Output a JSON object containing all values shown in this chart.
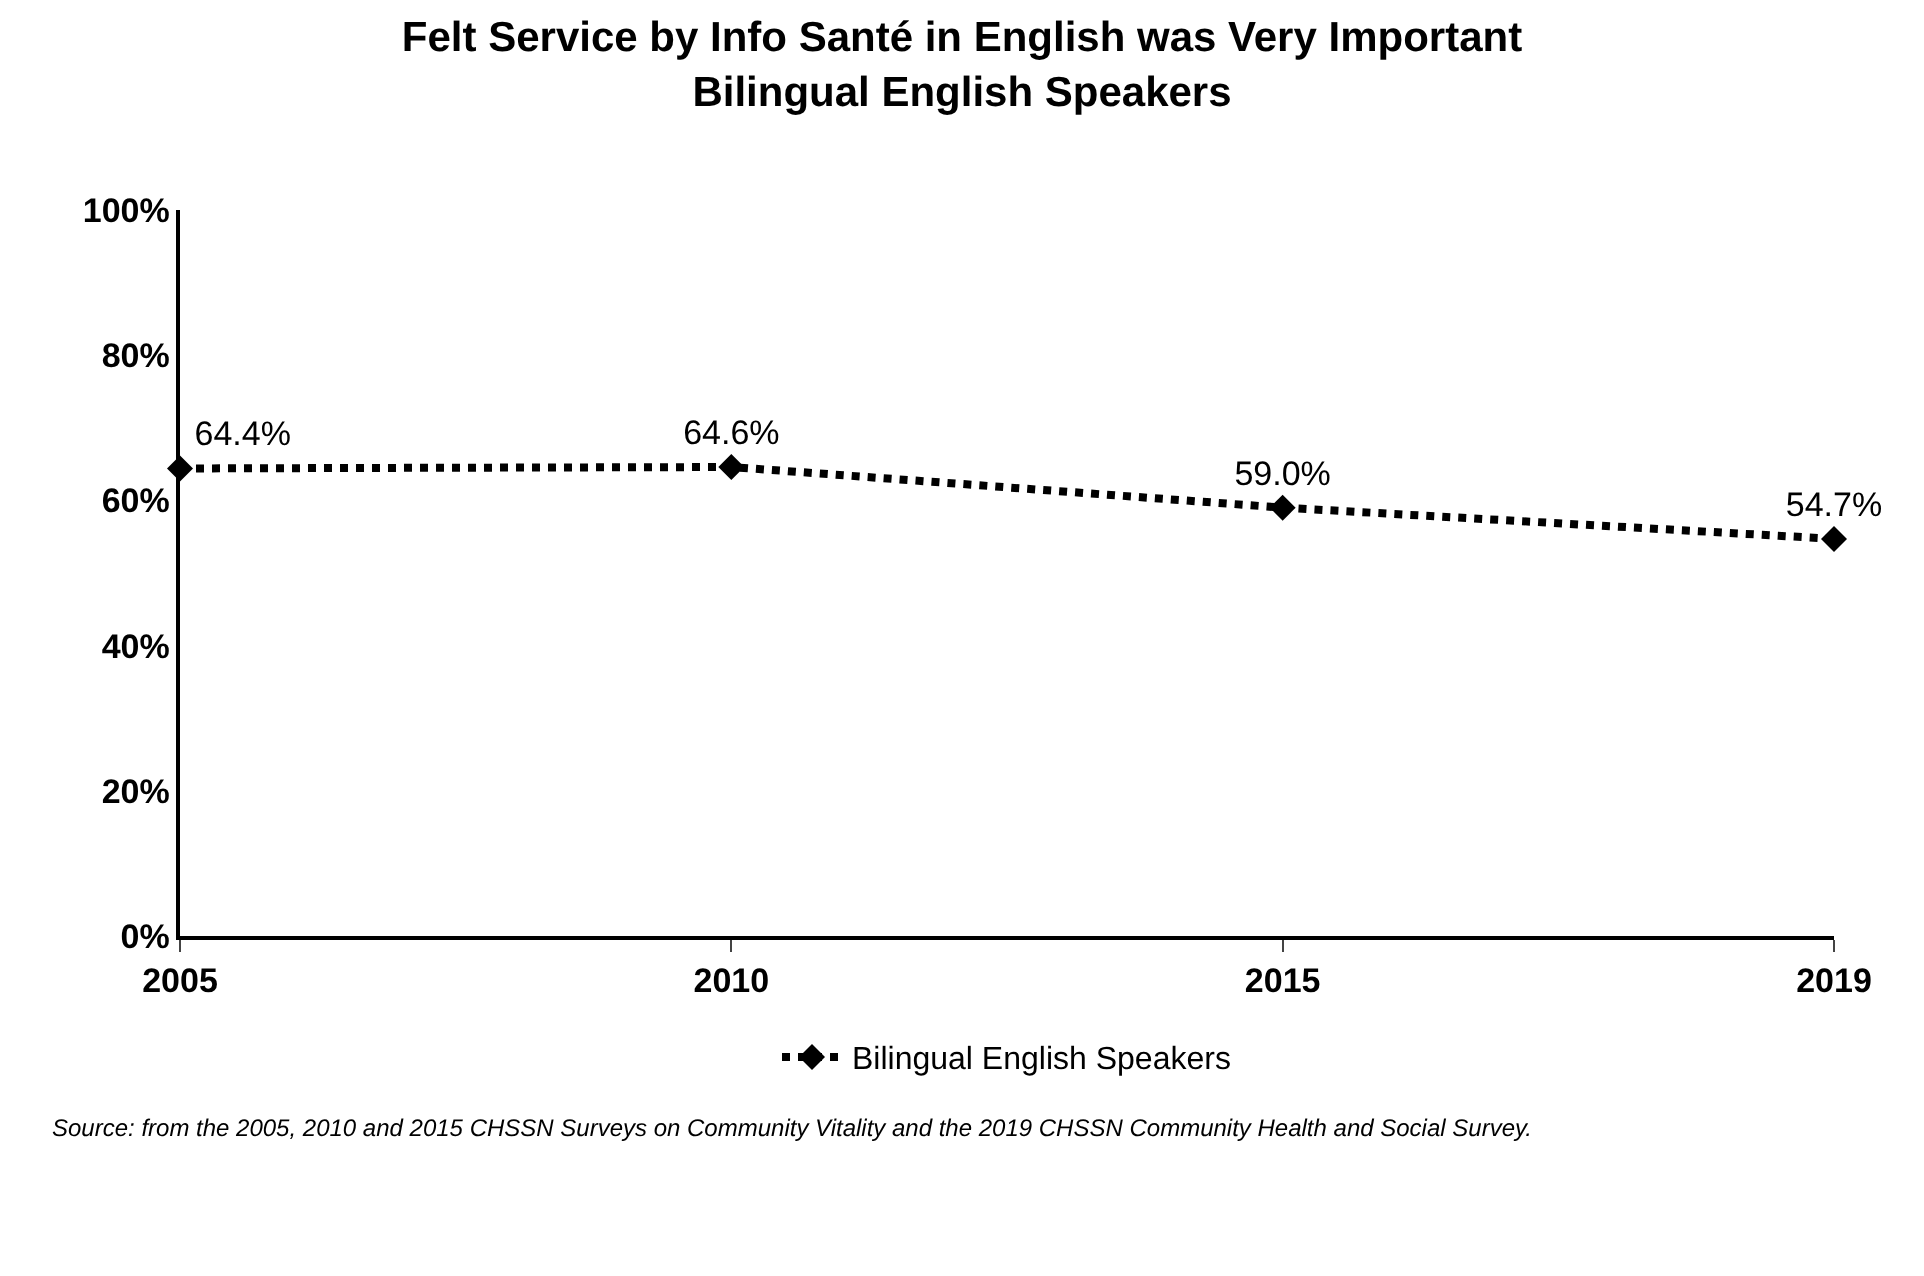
{
  "chart_data": {
    "type": "line",
    "title": "Felt Service by Info Santé in English was Very Important\nBilingual English Speakers",
    "categories": [
      "2005",
      "2010",
      "2015",
      "2019"
    ],
    "series": [
      {
        "name": "Bilingual English Speakers",
        "color": "#000000",
        "values": [
          64.4,
          64.6,
          59.0,
          54.7
        ],
        "value_labels": [
          "64.4%",
          "64.6%",
          "59.0%",
          "54.7%"
        ]
      }
    ],
    "ylim": [
      0,
      100
    ],
    "yticks": [
      {
        "value": 0,
        "label": "0%"
      },
      {
        "value": 20,
        "label": "20%"
      },
      {
        "value": 40,
        "label": "40%"
      },
      {
        "value": 60,
        "label": "60%"
      },
      {
        "value": 80,
        "label": "80%"
      },
      {
        "value": 100,
        "label": "100%"
      }
    ],
    "grid": false,
    "legend": "bottom",
    "marker": "diamond",
    "line_style": "dotted",
    "annotations": [
      "Source: from the 2005, 2010 and 2015 CHSSN Surveys on Community Vitality and the 2019 CHSSN Community Health and Social Survey."
    ]
  }
}
